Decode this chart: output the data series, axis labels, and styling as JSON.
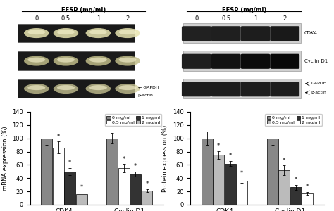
{
  "mrna_CDK4": [
    100,
    86,
    50,
    16
  ],
  "mrna_CDK4_err": [
    10,
    9,
    5,
    2
  ],
  "mrna_CyclinD1": [
    100,
    55,
    46,
    21
  ],
  "mrna_CyclinD1_err": [
    8,
    6,
    4,
    2
  ],
  "protein_CDK4": [
    100,
    75,
    62,
    36
  ],
  "protein_CDK4_err": [
    10,
    6,
    4,
    3
  ],
  "protein_CyclinD1": [
    100,
    52,
    26,
    17
  ],
  "protein_CyclinD1_err": [
    10,
    7,
    4,
    2
  ],
  "bar_colors_mrna": [
    "#888888",
    "#ffffff",
    "#333333",
    "#bbbbbb"
  ],
  "bar_colors_protein": [
    "#888888",
    "#bbbbbb",
    "#333333",
    "#ffffff"
  ],
  "mrna_ylabel": "mRNA expression (%)",
  "protein_ylabel": "Protein expression (%)",
  "ylim": [
    0,
    140
  ],
  "yticks": [
    0,
    20,
    40,
    60,
    80,
    100,
    120,
    140
  ],
  "group_labels": [
    "CDK4",
    "Cyclin D1"
  ],
  "eesp_label": "EESP (mg/ml)",
  "dose_labels": [
    "0",
    "0.5",
    "1",
    "2"
  ],
  "gel_bg_color": "#1a1a1a",
  "gel_band_color1": "#d0cfa0",
  "gel_band_color2": "#b0af80",
  "wb_bg_color": "#d8d8d8",
  "wb_light_bg": "#eeeeee"
}
